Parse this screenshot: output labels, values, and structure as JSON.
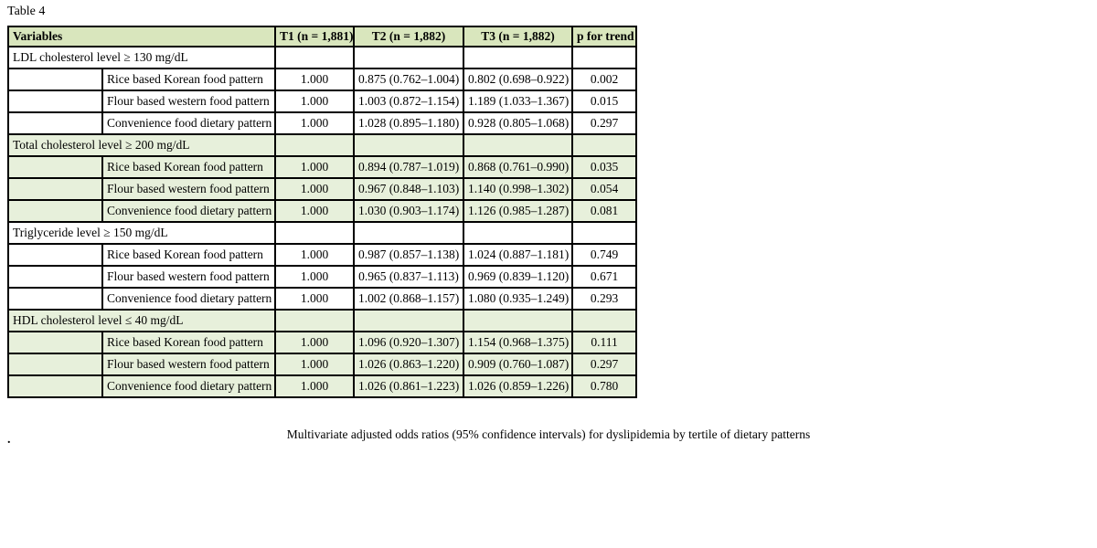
{
  "page": {
    "title": "Table 4",
    "caption": "Multivariate adjusted odds ratios (95% confidence intervals) for dyslipidemia by tertile of dietary patterns",
    "stray_period": "."
  },
  "colors": {
    "header_green": "#d9e6bd",
    "band_green": "#e7f0db",
    "border": "#000000"
  },
  "table": {
    "columns": {
      "variables": "Variables",
      "t1": "T1 (n = 1,881)",
      "t2": "T2 (n = 1,882)",
      "t3": "T3 (n = 1,882)",
      "p": "p for trend"
    },
    "sections": [
      {
        "header": "LDL cholesterol level ≥ 130 mg/dL",
        "shaded": false,
        "rows": [
          {
            "label": "Rice based Korean food pattern",
            "t1": "1.000",
            "t2": "0.875 (0.762–1.004)",
            "t3": "0.802 (0.698–0.922)",
            "p": "0.002"
          },
          {
            "label": "Flour based western food pattern",
            "t1": "1.000",
            "t2": "1.003 (0.872–1.154)",
            "t3": "1.189 (1.033–1.367)",
            "p": "0.015"
          },
          {
            "label": "Convenience food dietary pattern",
            "t1": "1.000",
            "t2": "1.028 (0.895–1.180)",
            "t3": "0.928 (0.805–1.068)",
            "p": "0.297"
          }
        ]
      },
      {
        "header": "Total cholesterol level ≥ 200 mg/dL",
        "shaded": true,
        "rows": [
          {
            "label": "Rice based Korean food pattern",
            "t1": "1.000",
            "t2": "0.894 (0.787–1.019)",
            "t3": "0.868 (0.761–0.990)",
            "p": "0.035"
          },
          {
            "label": "Flour based western food pattern",
            "t1": "1.000",
            "t2": "0.967 (0.848–1.103)",
            "t3": "1.140 (0.998–1.302)",
            "p": "0.054"
          },
          {
            "label": "Convenience food dietary pattern",
            "t1": "1.000",
            "t2": "1.030 (0.903–1.174)",
            "t3": "1.126 (0.985–1.287)",
            "p": "0.081"
          }
        ]
      },
      {
        "header": "Triglyceride level ≥ 150 mg/dL",
        "shaded": false,
        "rows": [
          {
            "label": "Rice based Korean food pattern",
            "t1": "1.000",
            "t2": "0.987 (0.857–1.138)",
            "t3": "1.024 (0.887–1.181)",
            "p": "0.749"
          },
          {
            "label": "Flour based western food pattern",
            "t1": "1.000",
            "t2": "0.965 (0.837–1.113)",
            "t3": "0.969 (0.839–1.120)",
            "p": "0.671"
          },
          {
            "label": "Convenience food dietary pattern",
            "t1": "1.000",
            "t2": "1.002 (0.868–1.157)",
            "t3": "1.080 (0.935–1.249)",
            "p": "0.293"
          }
        ]
      },
      {
        "header": "HDL cholesterol level ≤ 40 mg/dL",
        "shaded": true,
        "rows": [
          {
            "label": "Rice based Korean food pattern",
            "t1": "1.000",
            "t2": "1.096 (0.920–1.307)",
            "t3": "1.154 (0.968–1.375)",
            "p": "0.111"
          },
          {
            "label": "Flour based western food pattern",
            "t1": "1.000",
            "t2": "1.026 (0.863–1.220)",
            "t3": "0.909 (0.760–1.087)",
            "p": "0.297"
          },
          {
            "label": "Convenience food dietary pattern",
            "t1": "1.000",
            "t2": "1.026 (0.861–1.223)",
            "t3": "1.026 (0.859–1.226)",
            "p": "0.780"
          }
        ]
      }
    ]
  }
}
